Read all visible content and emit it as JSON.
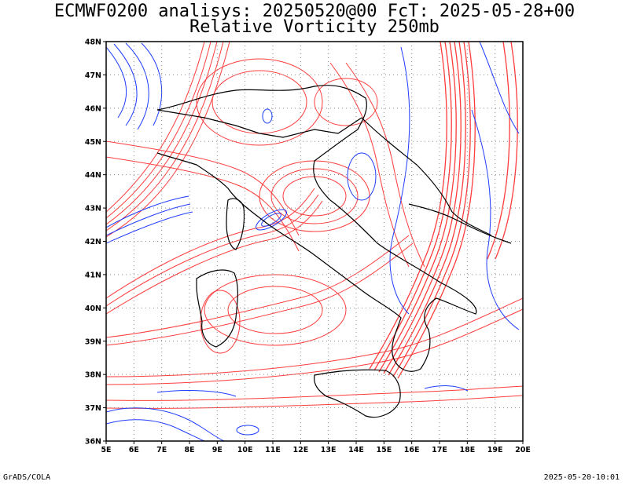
{
  "title_line_1": "ECMWF0200 analisys: 20250520@00 FcT: 2025-05-28+00",
  "title_line_2": "Relative Vorticity 250mb",
  "footer_left": "GrADS/COLA",
  "footer_right": "2025-05-20-10:01",
  "map": {
    "lon_range": [
      5,
      20
    ],
    "lat_range": [
      36,
      48
    ],
    "lon_labels": [
      "5E",
      "6E",
      "7E",
      "8E",
      "9E",
      "10E",
      "11E",
      "12E",
      "13E",
      "14E",
      "15E",
      "16E",
      "17E",
      "18E",
      "19E",
      "20E"
    ],
    "lat_labels": [
      "36N",
      "37N",
      "38N",
      "39N",
      "40N",
      "41N",
      "42N",
      "43N",
      "44N",
      "45N",
      "46N",
      "47N",
      "48N"
    ],
    "grid": "dotted",
    "positive_contour_color": "#ff3c3c",
    "negative_contour_color": "#1e3cff",
    "coastline_color": "#000000"
  }
}
